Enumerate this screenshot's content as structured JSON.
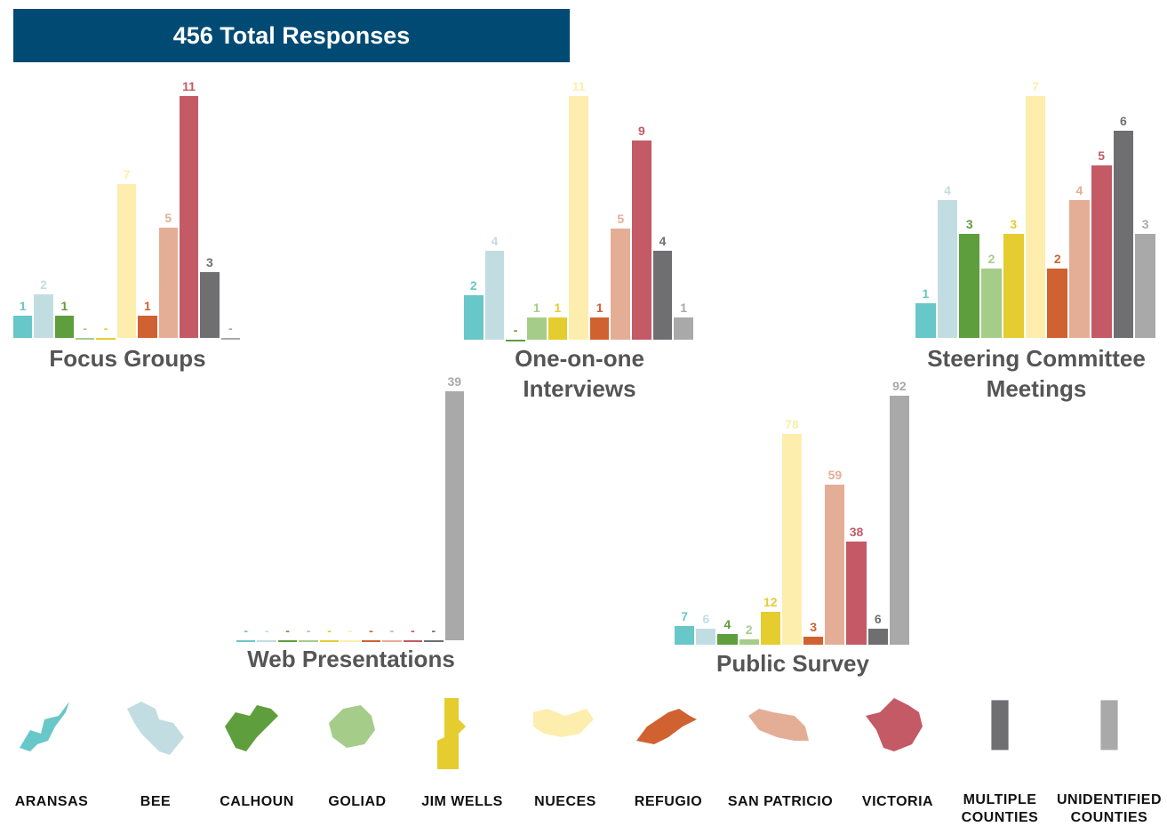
{
  "header": {
    "title": "456 Total Responses"
  },
  "legend": {
    "items": [
      {
        "name": "ARANSAS",
        "color": "#68c7c8"
      },
      {
        "name": "BEE",
        "color": "#c2dde2"
      },
      {
        "name": "CALHOUN",
        "color": "#5e9e3d"
      },
      {
        "name": "GOLIAD",
        "color": "#a6cc8a"
      },
      {
        "name": "JIM WELLS",
        "color": "#e5cc2f"
      },
      {
        "name": "NUECES",
        "color": "#fdeeae"
      },
      {
        "name": "REFUGIO",
        "color": "#d06232"
      },
      {
        "name": "SAN PATRICIO",
        "color": "#e4ae96"
      },
      {
        "name": "VICTORIA",
        "color": "#c35a65"
      },
      {
        "name": "MULTIPLE COUNTIES",
        "color": "#6f6f71"
      },
      {
        "name": "UNIDENTIFIED COUNTIES",
        "color": "#a9a9a9"
      }
    ]
  },
  "chart_data": [
    {
      "type": "bar",
      "title": "Focus Groups",
      "values": [
        1,
        2,
        1,
        0,
        0,
        7,
        1,
        5,
        11,
        3,
        0
      ],
      "value_labels": [
        "1",
        "2",
        "1",
        "-",
        "-",
        "7",
        "1",
        "5",
        "11",
        "3",
        "-"
      ],
      "ylim": [
        0,
        11
      ]
    },
    {
      "type": "bar",
      "title": "One-on-one Interviews",
      "values": [
        2,
        4,
        0,
        1,
        1,
        11,
        1,
        5,
        9,
        4,
        1
      ],
      "value_labels": [
        "2",
        "4",
        "-",
        "1",
        "1",
        "11",
        "1",
        "5",
        "9",
        "4",
        "1"
      ],
      "ylim": [
        0,
        11
      ]
    },
    {
      "type": "bar",
      "title": "Steering Committee Meetings",
      "values": [
        1,
        4,
        3,
        2,
        3,
        7,
        2,
        4,
        5,
        6,
        3
      ],
      "ylim": [
        0,
        7
      ]
    },
    {
      "type": "bar",
      "title": "Web Presentations",
      "values": [
        0,
        0,
        0,
        0,
        0,
        0,
        0,
        0,
        0,
        0,
        39
      ],
      "value_labels": [
        "-",
        "-",
        "-",
        "-",
        "-",
        "-",
        "-",
        "-",
        "-",
        "-",
        "39"
      ],
      "ylim": [
        0,
        39
      ]
    },
    {
      "type": "bar",
      "title": "Public Survey",
      "values": [
        7,
        6,
        4,
        2,
        12,
        78,
        3,
        59,
        38,
        6,
        92
      ],
      "ylim": [
        0,
        92
      ]
    }
  ]
}
